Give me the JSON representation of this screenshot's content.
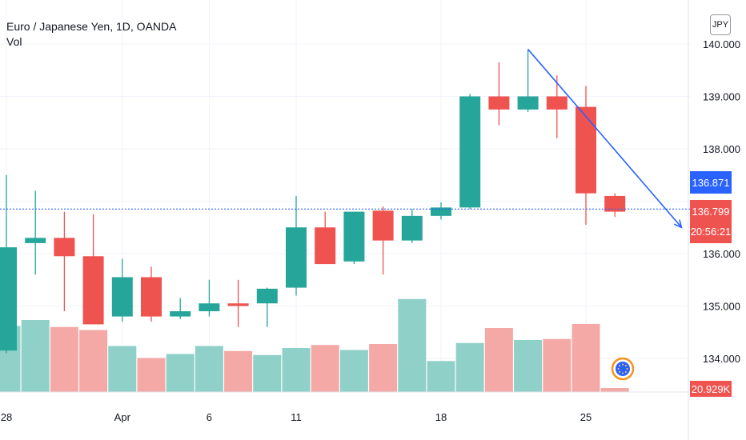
{
  "legend": {
    "symbol": "Euro / Japanese Yen, 1D, OANDA",
    "indicator": "Vol"
  },
  "currency": "JPY",
  "price_tags": {
    "blue": {
      "value": "136.871",
      "color": "#2962ff"
    },
    "red": {
      "value": "136.799",
      "countdown": "20:56:21",
      "color": "#ef5350"
    },
    "volume": {
      "value": "20.929K",
      "color": "#ef5350"
    }
  },
  "colors": {
    "up": "#26a69a",
    "down": "#ef5350",
    "vol_up": "#8fd0c8",
    "vol_down": "#f5a9a7",
    "grid": "#f0f3fa",
    "trendline": "#2962ff"
  },
  "event_icon": "calendar-event-icon",
  "chart_data": {
    "type": "candlestick",
    "symbol": "EURJPY",
    "interval": "1D",
    "y_axis_ticks": [
      "134.000",
      "135.000",
      "136.000",
      "138.000",
      "139.000",
      "140.000"
    ],
    "x_axis_ticks": [
      "28",
      "Apr",
      "6",
      "11",
      "18",
      "25"
    ],
    "ylim": [
      133.5,
      140.6
    ],
    "grid": true,
    "bars": [
      {
        "open": 134.15,
        "high": 137.5,
        "low": 134.1,
        "close": 136.12,
        "vol_rel": 0.66
      },
      {
        "open": 136.2,
        "high": 137.2,
        "low": 135.6,
        "close": 136.3,
        "vol_rel": 0.72
      },
      {
        "open": 136.3,
        "high": 136.8,
        "low": 134.9,
        "close": 135.95,
        "vol_rel": 0.65
      },
      {
        "open": 135.95,
        "high": 136.75,
        "low": 134.7,
        "close": 134.65,
        "vol_rel": 0.62
      },
      {
        "open": 134.8,
        "high": 135.9,
        "low": 134.7,
        "close": 135.55,
        "vol_rel": 0.46
      },
      {
        "open": 135.55,
        "high": 135.75,
        "low": 134.7,
        "close": 134.8,
        "vol_rel": 0.34
      },
      {
        "open": 134.8,
        "high": 135.15,
        "low": 134.75,
        "close": 134.9,
        "vol_rel": 0.38
      },
      {
        "open": 134.9,
        "high": 135.5,
        "low": 134.8,
        "close": 135.05,
        "vol_rel": 0.46
      },
      {
        "open": 135.05,
        "high": 135.5,
        "low": 134.6,
        "close": 135.0,
        "vol_rel": 0.41
      },
      {
        "open": 135.05,
        "high": 135.35,
        "low": 134.6,
        "close": 135.33,
        "vol_rel": 0.37
      },
      {
        "open": 135.35,
        "high": 137.1,
        "low": 135.2,
        "close": 136.5,
        "vol_rel": 0.44
      },
      {
        "open": 136.5,
        "high": 136.8,
        "low": 135.8,
        "close": 135.8,
        "vol_rel": 0.47
      },
      {
        "open": 135.85,
        "high": 136.8,
        "low": 135.8,
        "close": 136.8,
        "vol_rel": 0.42
      },
      {
        "open": 136.82,
        "high": 136.9,
        "low": 135.6,
        "close": 136.25,
        "vol_rel": 0.48
      },
      {
        "open": 136.25,
        "high": 136.85,
        "low": 136.2,
        "close": 136.72,
        "vol_rel": 0.93
      },
      {
        "open": 136.72,
        "high": 136.98,
        "low": 136.65,
        "close": 136.88,
        "vol_rel": 0.31
      },
      {
        "open": 136.88,
        "high": 139.05,
        "low": 136.85,
        "close": 139.0,
        "vol_rel": 0.49
      },
      {
        "open": 139.0,
        "high": 139.65,
        "low": 138.45,
        "close": 138.75,
        "vol_rel": 0.64
      },
      {
        "open": 138.75,
        "high": 139.9,
        "low": 138.7,
        "close": 139.0,
        "vol_rel": 0.52
      },
      {
        "open": 139.0,
        "high": 139.4,
        "low": 138.2,
        "close": 138.75,
        "vol_rel": 0.53
      },
      {
        "open": 138.8,
        "high": 139.2,
        "low": 136.55,
        "close": 137.15,
        "vol_rel": 0.68
      },
      {
        "open": 137.1,
        "high": 137.15,
        "low": 136.7,
        "close": 136.8,
        "vol_rel": 0.04
      }
    ],
    "price_line": 136.85,
    "trendline": {
      "from": {
        "bar": 18,
        "price": 139.9
      },
      "to": {
        "bar": 23.3,
        "price": 136.5
      }
    }
  }
}
